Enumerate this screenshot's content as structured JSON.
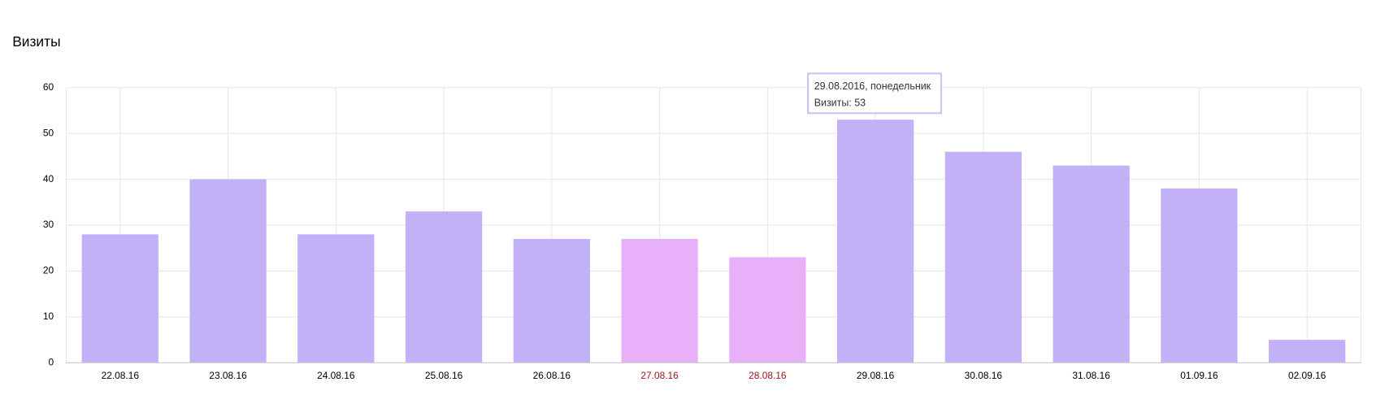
{
  "chart_data": {
    "type": "bar",
    "title": "Визиты",
    "categories": [
      "22.08.16",
      "23.08.16",
      "24.08.16",
      "25.08.16",
      "26.08.16",
      "27.08.16",
      "28.08.16",
      "29.08.16",
      "30.08.16",
      "31.08.16",
      "01.09.16",
      "02.09.16"
    ],
    "values": [
      28,
      40,
      28,
      33,
      27,
      27,
      23,
      53,
      46,
      43,
      38,
      5
    ],
    "colors": [
      "#c3b1f8",
      "#c3b1f8",
      "#c3b1f8",
      "#c3b1f8",
      "#c3b1f8",
      "#e8b0f8",
      "#e8b0f8",
      "#c3b1f8",
      "#c3b1f8",
      "#c3b1f8",
      "#c3b1f8",
      "#c3b1f8"
    ],
    "label_colors": [
      "#000000",
      "#000000",
      "#000000",
      "#000000",
      "#000000",
      "#a0161b",
      "#a0161b",
      "#000000",
      "#000000",
      "#000000",
      "#000000",
      "#000000"
    ],
    "ylim": [
      0,
      60
    ],
    "yticks": [
      0,
      10,
      20,
      30,
      40,
      50,
      60
    ],
    "grid": true,
    "tooltip": {
      "title": "29.08.2016, понедельник",
      "text": "Визиты: 53"
    }
  }
}
